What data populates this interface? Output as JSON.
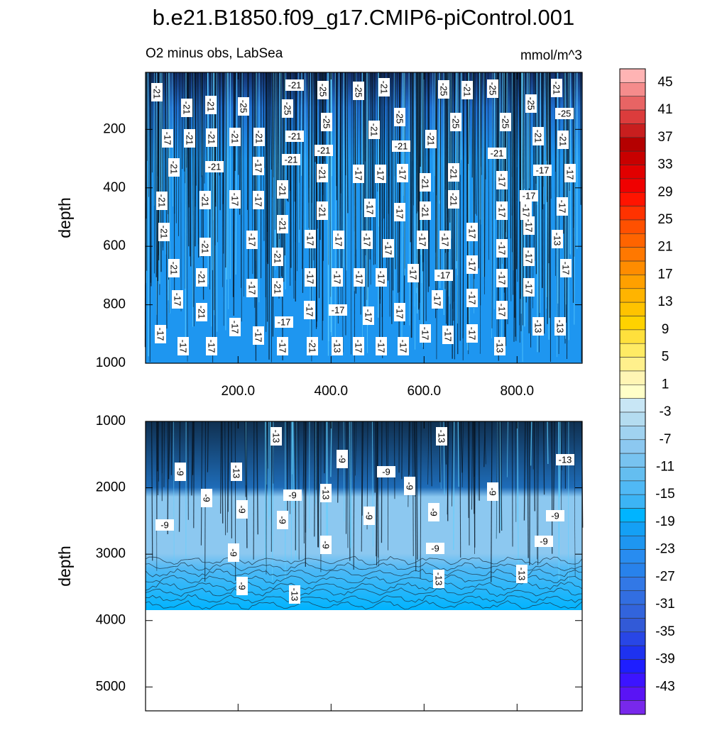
{
  "header": {
    "title": "b.e21.B1850.f09_g17.CMIP6-piControl.001",
    "subtitle": "O2 minus obs, LabSea",
    "units": "mmol/m^3"
  },
  "chart_data": [
    {
      "type": "contour",
      "ylabel": "depth",
      "xlim": [
        1,
        940
      ],
      "ylim": [
        5,
        1000
      ],
      "y_reversed": true,
      "xticks": [
        {
          "value": 200,
          "label": "200.0"
        },
        {
          "value": 400,
          "label": "400.0"
        },
        {
          "value": 600,
          "label": "600.0"
        },
        {
          "value": 800,
          "label": "800.0"
        }
      ],
      "yticks": [
        200,
        400,
        600,
        800,
        1000
      ],
      "contour_labels": [
        -21,
        -21,
        -25,
        -25,
        -21,
        -25,
        -21,
        -25,
        -21,
        -21,
        -21,
        -25,
        -25,
        -25,
        -25,
        -25,
        -25,
        -25,
        -25,
        -17,
        -21,
        -21,
        -21,
        -21,
        -21,
        -21,
        -21,
        -21,
        -21,
        -21,
        -21,
        -21,
        -21,
        -21,
        -21,
        -17,
        -21,
        -17,
        -17,
        -17,
        -21,
        -17,
        -17,
        -17,
        -21,
        -21,
        -21,
        -17,
        -17,
        -21,
        -21,
        -17,
        -17,
        -21,
        -17,
        -21,
        -17,
        -17,
        -17,
        -21,
        -21,
        -17,
        -17,
        -17,
        -17,
        -17,
        -17,
        -17,
        -17,
        -13,
        -21,
        -17,
        -17,
        -21,
        -17,
        -21,
        -21,
        -17,
        -17,
        -17,
        -17,
        -17,
        -17,
        -17,
        -17,
        -17,
        -17,
        -21,
        -17,
        -17,
        -17,
        -17,
        -21,
        -17,
        -17,
        -17,
        -17,
        -17,
        -17,
        -17,
        -13,
        -13,
        -17,
        -17,
        -17,
        -17,
        -17,
        -17,
        -17,
        -17,
        -21,
        -13,
        -17,
        -17,
        -17,
        -13,
        -17
      ]
    },
    {
      "type": "contour",
      "ylabel": "depth",
      "xlim": [
        1,
        940
      ],
      "ylim": [
        1000,
        5360
      ],
      "y_reversed": true,
      "xticks": [
        200,
        400,
        600,
        800
      ],
      "yticks": [
        1000,
        2000,
        3000,
        4000,
        5000
      ],
      "contour_labels": [
        -13,
        -13,
        -9,
        -13,
        -9,
        -13,
        -9,
        -9,
        -9,
        -9,
        -13,
        -9,
        -9,
        -9,
        -9,
        -9,
        -9,
        -9,
        -9,
        -9,
        -9,
        -9,
        -9,
        -13,
        -13,
        -13,
        -13
      ]
    }
  ],
  "colorbar": {
    "lim": [
      -47,
      47
    ],
    "labels": [
      45,
      41,
      37,
      33,
      29,
      25,
      21,
      17,
      13,
      9,
      5,
      1,
      -3,
      -7,
      -11,
      -15,
      -19,
      -23,
      -27,
      -31,
      -35,
      -39,
      -43
    ],
    "colors": [
      "#ffb4b4",
      "#f58c8c",
      "#e86464",
      "#dc3c3c",
      "#c81e1e",
      "#b40000",
      "#c80000",
      "#e10000",
      "#f00000",
      "#ff1400",
      "#ff3200",
      "#ff5000",
      "#ff6400",
      "#ff7800",
      "#ff8c00",
      "#ffa000",
      "#ffb400",
      "#ffc300",
      "#ffd200",
      "#ffe03c",
      "#ffeb64",
      "#fff08c",
      "#fff5b4",
      "#ffffc8",
      "#c8e6f5",
      "#b4dcf0",
      "#a0d2f0",
      "#8cc8f0",
      "#78c3f0",
      "#64bef0",
      "#50b9f5",
      "#3cb4f5",
      "#00b4ff",
      "#14a0f5",
      "#1e96f0",
      "#288cf0",
      "#2882eb",
      "#3278e6",
      "#326ee1",
      "#3264dc",
      "#325ad7",
      "#2846e6",
      "#1e32f0",
      "#1e1eff",
      "#3c14ff",
      "#5a14f5",
      "#7828eb"
    ]
  }
}
